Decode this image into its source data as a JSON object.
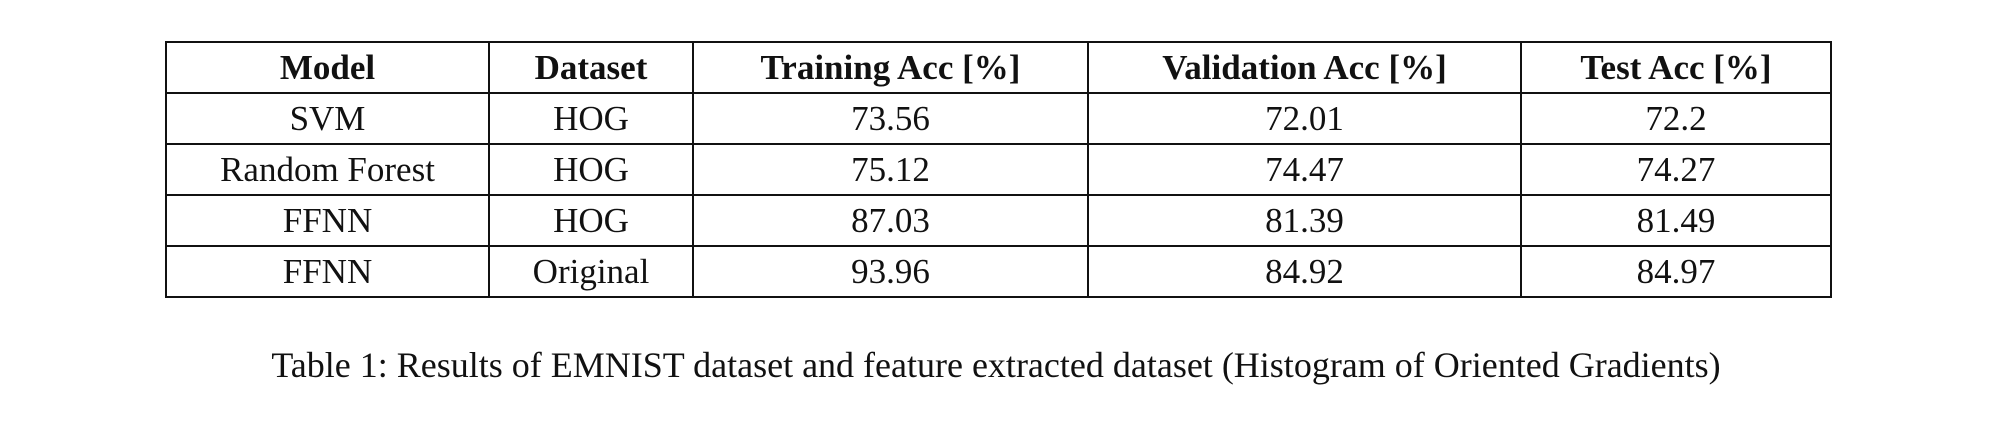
{
  "table": {
    "header": [
      "Model",
      "Dataset",
      "Training Acc [%]",
      "Validation Acc [%]",
      "Test Acc [%]"
    ],
    "rows": [
      [
        "SVM",
        "HOG",
        "73.56",
        "72.01",
        "72.2"
      ],
      [
        "Random Forest",
        "HOG",
        "75.12",
        "74.47",
        "74.27"
      ],
      [
        "FFNN",
        "HOG",
        "87.03",
        "81.39",
        "81.49"
      ],
      [
        "FFNN",
        "Original",
        "93.96",
        "84.92",
        "84.97"
      ]
    ],
    "caption": "Table 1: Results of EMNIST dataset and feature extracted dataset (Histogram of Oriented Gradients)"
  }
}
